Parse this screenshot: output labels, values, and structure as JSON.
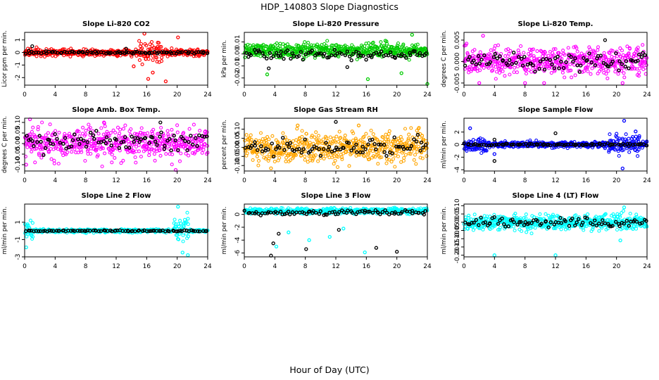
{
  "figure": {
    "title": "HDP_140803  Slope Diagnostics",
    "xlabel": "Hour of Day (UTC)"
  },
  "chart_data": [
    {
      "type": "scatter",
      "title": "Slope Li-820 CO2",
      "ylabel": "Licor ppm per min.",
      "xlim": [
        0,
        24
      ],
      "ylim": [
        -2.6,
        1.6
      ],
      "xticks": [
        0,
        4,
        8,
        12,
        16,
        20,
        24
      ],
      "yticks": [
        -2,
        -1,
        0,
        1
      ],
      "yticklabels": [
        "-2",
        "-1",
        "0",
        "1"
      ],
      "grid": false,
      "series": [
        {
          "color": "#ff0000",
          "center": 0.0,
          "spread": 0.3,
          "bursts": [
            {
              "x0": 15,
              "x1": 18,
              "spread": 0.9
            }
          ],
          "outliers": [
            [
              15.7,
              1.5
            ],
            [
              16.2,
              -2.1
            ],
            [
              18.5,
              -2.3
            ],
            [
              20.1,
              1.2
            ],
            [
              14.3,
              -1.1
            ],
            [
              16.8,
              -1.6
            ]
          ]
        },
        {
          "color": "#000000",
          "center": 0.0,
          "spread": 0.12,
          "outliers": [
            [
              1.0,
              0.5
            ],
            [
              13.3,
              0.3
            ]
          ]
        }
      ]
    },
    {
      "type": "scatter",
      "title": "Slope Li-820 Pressure",
      "ylabel": "kPa per min.",
      "xlim": [
        0,
        24
      ],
      "ylim": [
        -0.026,
        0.018
      ],
      "xticks": [
        0,
        4,
        8,
        12,
        16,
        20,
        24
      ],
      "yticks": [
        -0.02,
        -0.01,
        0.0,
        0.01
      ],
      "yticklabels": [
        "-0.02",
        "-0.01",
        "0.00",
        "0.01"
      ],
      "grid": false,
      "series": [
        {
          "color": "#00cc00",
          "center": 0.003,
          "spread": 0.006,
          "outliers": [
            [
              16.2,
              -0.021
            ],
            [
              18.5,
              0.011
            ],
            [
              22.0,
              0.016
            ],
            [
              24.0,
              -0.025
            ],
            [
              3.0,
              -0.017
            ],
            [
              20.6,
              -0.016
            ]
          ]
        },
        {
          "color": "#000000",
          "center": 0.0,
          "spread": 0.005,
          "outliers": [
            [
              3.2,
              -0.012
            ],
            [
              13.5,
              -0.011
            ]
          ]
        }
      ]
    },
    {
      "type": "scatter",
      "title": "Slope Li-820 Temp.",
      "ylabel": "degrees C per min.",
      "xlim": [
        0,
        24
      ],
      "ylim": [
        -0.0055,
        0.0068
      ],
      "xticks": [
        0,
        4,
        8,
        12,
        16,
        20,
        24
      ],
      "yticks": [
        -0.005,
        0.0,
        0.005
      ],
      "yticklabels": [
        "-0.005",
        "0.000",
        "0.005"
      ],
      "grid": false,
      "series": [
        {
          "color": "#ff00ff",
          "center": 0.0,
          "spread": 0.0035,
          "outliers": [
            [
              2.0,
              -0.005
            ],
            [
              2.5,
              0.006
            ],
            [
              8.0,
              -0.005
            ],
            [
              10.5,
              -0.005
            ],
            [
              20.8,
              -0.005
            ]
          ]
        },
        {
          "color": "#000000",
          "center": 0.0,
          "spread": 0.0022,
          "outliers": [
            [
              18.5,
              0.005
            ]
          ]
        }
      ]
    },
    {
      "type": "scatter",
      "title": "Slope Amb. Box Temp.",
      "ylabel": "degrees C per min.",
      "xlim": [
        0,
        24
      ],
      "ylim": [
        -0.13,
        0.12
      ],
      "xticks": [
        0,
        4,
        8,
        12,
        16,
        20,
        24
      ],
      "yticks": [
        -0.1,
        -0.05,
        0.0,
        0.05,
        0.1
      ],
      "yticklabels": [
        "-0.10",
        "-0.05",
        "0.00",
        "0.05",
        "0.10"
      ],
      "grid": false,
      "series": [
        {
          "color": "#ff00ff",
          "center": 0.0,
          "spread": 0.08,
          "outliers": [
            [
              0.2,
              -0.1
            ],
            [
              19.8,
              -0.125
            ],
            [
              0.7,
              0.115
            ],
            [
              10.4,
              0.1
            ]
          ]
        },
        {
          "color": "#000000",
          "center": 0.01,
          "spread": 0.05,
          "outliers": [
            [
              17.8,
              0.1
            ]
          ]
        }
      ]
    },
    {
      "type": "scatter",
      "title": "Slope Gas Stream RH",
      "ylabel": "percent per min.",
      "xlim": [
        0,
        24
      ],
      "ylim": [
        -0.13,
        0.16
      ],
      "xticks": [
        0,
        4,
        8,
        12,
        16,
        20,
        24
      ],
      "yticks": [
        -0.1,
        -0.05,
        0.0,
        0.05,
        0.1
      ],
      "yticklabels": [
        "-0.10",
        "-0.05",
        "0.00",
        "0.05",
        "0.10"
      ],
      "grid": false,
      "series": [
        {
          "color": "#ffa500",
          "center": 0.0,
          "spread": 0.09,
          "outliers": [
            [
              3.5,
              -0.115
            ],
            [
              15.0,
              0.12
            ],
            [
              7.0,
              0.12
            ]
          ]
        },
        {
          "color": "#000000",
          "center": 0.0,
          "spread": 0.05,
          "outliers": [
            [
              12.0,
              0.14
            ]
          ]
        }
      ]
    },
    {
      "type": "scatter",
      "title": "Slope Sample Flow",
      "ylabel": "ml/min per min.",
      "xlim": [
        0,
        24
      ],
      "ylim": [
        -4.2,
        4.2
      ],
      "xticks": [
        0,
        4,
        8,
        12,
        16,
        20,
        24
      ],
      "yticks": [
        -4,
        -2,
        0,
        2
      ],
      "yticklabels": [
        "-4",
        "-2",
        "0",
        "2"
      ],
      "grid": false,
      "series": [
        {
          "color": "#0000ff",
          "center": 0.0,
          "spread": 0.5,
          "bursts": [
            {
              "x0": 0,
              "x1": 3,
              "spread": 1.4
            },
            {
              "x0": 19,
              "x1": 23,
              "spread": 1.8
            }
          ],
          "outliers": [
            [
              0.8,
              2.6
            ],
            [
              21.0,
              3.8
            ],
            [
              20.8,
              -3.8
            ],
            [
              22.5,
              2.1
            ],
            [
              4.0,
              -1.5
            ]
          ]
        },
        {
          "color": "#000000",
          "center": 0.0,
          "spread": 0.2,
          "outliers": [
            [
              4.0,
              -2.6
            ],
            [
              4.0,
              0.8
            ],
            [
              12.0,
              1.8
            ]
          ]
        }
      ]
    },
    {
      "type": "scatter",
      "title": "Slope Line 2 Flow",
      "ylabel": "ml/min per min.",
      "xlim": [
        0,
        24
      ],
      "ylim": [
        -3.0,
        3.1
      ],
      "xticks": [
        0,
        4,
        8,
        12,
        16,
        20,
        24
      ],
      "yticks": [
        -3,
        -1,
        1
      ],
      "yticklabels": [
        "-3",
        "-1",
        "1"
      ],
      "grid": false,
      "series": [
        {
          "color": "#00ffff",
          "center": 0.0,
          "spread": 0.2,
          "bursts": [
            {
              "x0": 0,
              "x1": 1.2,
              "spread": 1.2
            },
            {
              "x0": 19.5,
              "x1": 21.5,
              "spread": 1.8
            }
          ],
          "outliers": [
            [
              20.1,
              2.8
            ],
            [
              0.2,
              -1.9
            ],
            [
              20.7,
              -2.5
            ],
            [
              21.4,
              -2.8
            ]
          ]
        },
        {
          "color": "#000000",
          "center": 0.0,
          "spread": 0.08,
          "outliers": []
        }
      ]
    },
    {
      "type": "scatter",
      "title": "Slope Line 3 Flow",
      "ylabel": "ml/min per min.",
      "xlim": [
        0,
        24
      ],
      "ylim": [
        -6.6,
        1.6
      ],
      "xticks": [
        0,
        4,
        8,
        12,
        16,
        20,
        24
      ],
      "yticks": [
        -6,
        -4,
        -2,
        0
      ],
      "yticklabels": [
        "-6",
        "-4",
        "-2",
        "0"
      ],
      "grid": false,
      "series": [
        {
          "color": "#00ffff",
          "center": 0.5,
          "spread": 0.45,
          "outliers": [
            [
              4.2,
              -5.0
            ],
            [
              5.8,
              -2.8
            ],
            [
              8.5,
              -4.0
            ],
            [
              11.2,
              -3.5
            ],
            [
              15.8,
              -5.9
            ],
            [
              13.0,
              -2.2
            ]
          ]
        },
        {
          "color": "#000000",
          "center": 0.3,
          "spread": 0.5,
          "outliers": [
            [
              3.5,
              -6.4
            ],
            [
              3.8,
              -4.5
            ],
            [
              8.1,
              -5.4
            ],
            [
              17.3,
              -5.2
            ],
            [
              20.0,
              -5.8
            ],
            [
              4.5,
              -3.0
            ],
            [
              12.4,
              -2.4
            ]
          ]
        }
      ]
    },
    {
      "type": "scatter",
      "title": "Slope Line 4 (LT) Flow",
      "ylabel": "ml/min per min.",
      "xlim": [
        0,
        24
      ],
      "ylim": [
        -0.21,
        0.11
      ],
      "xticks": [
        0,
        4,
        8,
        12,
        16,
        20,
        24
      ],
      "yticks": [
        -0.2,
        -0.15,
        -0.1,
        -0.05,
        0.0,
        0.05,
        0.1
      ],
      "yticklabels": [
        "-0.20",
        "-0.15",
        "-0.10",
        "-0.05",
        "0.00",
        "0.05",
        "0.10"
      ],
      "grid": false,
      "series": [
        {
          "color": "#00ffff",
          "center": 0.0,
          "spread": 0.05,
          "outliers": [
            [
              4.0,
              -0.2
            ],
            [
              12.0,
              -0.2
            ],
            [
              20.5,
              -0.11
            ],
            [
              21.0,
              0.09
            ]
          ]
        },
        {
          "color": "#000000",
          "center": 0.0,
          "spread": 0.035,
          "outliers": []
        }
      ]
    }
  ]
}
